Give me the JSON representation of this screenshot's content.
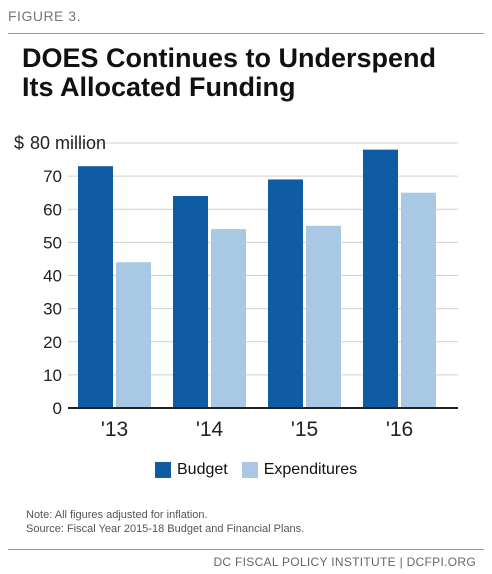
{
  "figure_label": "FIGURE 3.",
  "footer": {
    "note_line1": "Note: All figures adjusted for inflation.",
    "note_line2": "Source: Fiscal Year 2015-18 Budget and Financial Plans.",
    "credit": "DC FISCAL POLICY INSTITUTE | DCFPI.ORG"
  },
  "colors": {
    "budget": "#0f5ca5",
    "expenditures": "#a9c8e3",
    "grid": "#d0d0d0",
    "axis": "#222222"
  },
  "chart_data": {
    "type": "bar",
    "title": "DOES Continues to Underspend Its Allocated Funding",
    "categories": [
      "'13",
      "'14",
      "'15",
      "'16"
    ],
    "series": [
      {
        "name": "Budget",
        "values": [
          73,
          64,
          69,
          78
        ]
      },
      {
        "name": "Expenditures",
        "values": [
          44,
          54,
          55,
          65
        ]
      }
    ],
    "ylim": [
      0,
      80
    ],
    "yticks": [
      0,
      10,
      20,
      30,
      40,
      50,
      60,
      70,
      80
    ],
    "ytick_labels": [
      "0",
      "10",
      "20",
      "30",
      "40",
      "50",
      "60",
      "70",
      "80 million"
    ],
    "y_unit_prefix": "$",
    "grid": true,
    "legend": "bottom"
  }
}
